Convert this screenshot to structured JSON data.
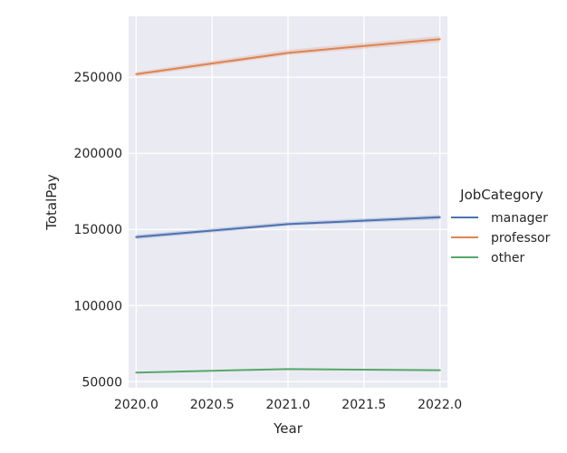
{
  "chart_data": {
    "type": "line",
    "xlabel": "Year",
    "ylabel": "TotalPay",
    "xlim": [
      2019.95,
      2022.05
    ],
    "ylim": [
      46000,
      290000
    ],
    "x_ticks": [
      "2020.0",
      "2020.5",
      "2021.0",
      "2021.5",
      "2022.0"
    ],
    "y_ticks": [
      "50000",
      "100000",
      "150000",
      "200000",
      "250000"
    ],
    "grid": true,
    "legend": {
      "title": "JobCategory",
      "placement": "right"
    },
    "x": [
      2020,
      2021,
      2022
    ],
    "series": [
      {
        "name": "manager",
        "color": "#4c72b0",
        "values": [
          145000,
          153500,
          158000
        ],
        "ci": [
          [
            143500,
            146500
          ],
          [
            152500,
            155000
          ],
          [
            156500,
            159500
          ]
        ]
      },
      {
        "name": "professor",
        "color": "#dd8452",
        "values": [
          252000,
          266000,
          275000
        ],
        "ci": [
          [
            250500,
            253500
          ],
          [
            264500,
            268000
          ],
          [
            273000,
            277000
          ]
        ]
      },
      {
        "name": "other",
        "color": "#55a868",
        "values": [
          56000,
          58300,
          57500
        ],
        "ci": [
          [
            55700,
            56300
          ],
          [
            57900,
            58700
          ],
          [
            57100,
            57900
          ]
        ]
      }
    ]
  }
}
